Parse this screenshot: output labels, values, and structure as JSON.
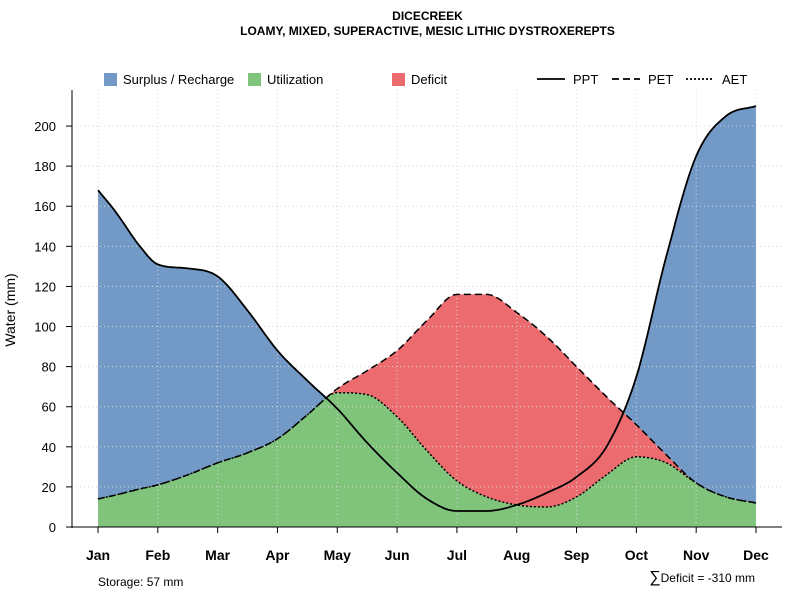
{
  "chart_data": {
    "type": "area",
    "title": "DICECREEK",
    "subtitle": "LOAMY, MIXED, SUPERACTIVE, MESIC LITHIC DYSTROXEREPTS",
    "xlabel": "",
    "ylabel": "Water (mm)",
    "categories": [
      "Jan",
      "Feb",
      "Mar",
      "Apr",
      "May",
      "Jun",
      "Jul",
      "Aug",
      "Sep",
      "Oct",
      "Nov",
      "Dec"
    ],
    "ylim": [
      0,
      210
    ],
    "yticks": [
      0,
      20,
      40,
      60,
      80,
      100,
      120,
      140,
      160,
      180,
      200
    ],
    "grid": true,
    "series": [
      {
        "name": "PPT",
        "line": "solid",
        "x": [
          0,
          0.3,
          0.7,
          1,
          1.5,
          2,
          2.5,
          3,
          3.5,
          4,
          4.5,
          5,
          5.5,
          6,
          6.5,
          7,
          7.5,
          8,
          8.5,
          9,
          9.5,
          10,
          10.5,
          11
        ],
        "values": [
          168,
          157,
          140,
          131,
          129,
          125,
          108,
          88,
          73,
          59,
          42,
          27,
          14,
          8,
          8,
          11,
          17,
          25,
          40,
          75,
          135,
          185,
          205,
          210
        ]
      },
      {
        "name": "PET",
        "line": "dashed",
        "x": [
          0,
          0.3,
          0.7,
          1,
          1.5,
          2,
          2.5,
          3,
          3.5,
          4,
          4.5,
          5,
          5.5,
          6,
          6.5,
          7,
          7.5,
          8,
          8.5,
          9,
          9.5,
          10,
          10.5,
          11
        ],
        "values": [
          14,
          16,
          19,
          21,
          26,
          32,
          37,
          44,
          56,
          69,
          78,
          88,
          103,
          116,
          116,
          107,
          95,
          80,
          65,
          51,
          36,
          22,
          15,
          12
        ]
      },
      {
        "name": "AET",
        "line": "dotted",
        "x": [
          0,
          0.3,
          0.7,
          1,
          1.5,
          2,
          2.5,
          3,
          3.5,
          4,
          4.5,
          5,
          5.5,
          6,
          6.5,
          7,
          7.5,
          8,
          8.5,
          9,
          9.5,
          10,
          10.5,
          11
        ],
        "values": [
          14,
          16,
          19,
          21,
          26,
          32,
          37,
          44,
          56,
          67,
          66,
          55,
          38,
          23,
          15,
          11,
          10,
          15,
          26,
          35,
          32,
          22,
          15,
          12
        ]
      }
    ],
    "legend": {
      "placement": "top",
      "fills": [
        {
          "label": "Surplus / Recharge",
          "color": "#7399c6"
        },
        {
          "label": "Utilization",
          "color": "#80c47c"
        },
        {
          "label": "Deficit",
          "color": "#eb6b6e"
        }
      ],
      "lines": [
        {
          "label": "PPT",
          "style": "solid"
        },
        {
          "label": "PET",
          "style": "dashed"
        },
        {
          "label": "AET",
          "style": "dotted"
        }
      ]
    },
    "annotations": {
      "storage": "Storage: 57 mm",
      "deficit_symbol": "∑",
      "deficit": "Deficit = -310 mm"
    }
  }
}
